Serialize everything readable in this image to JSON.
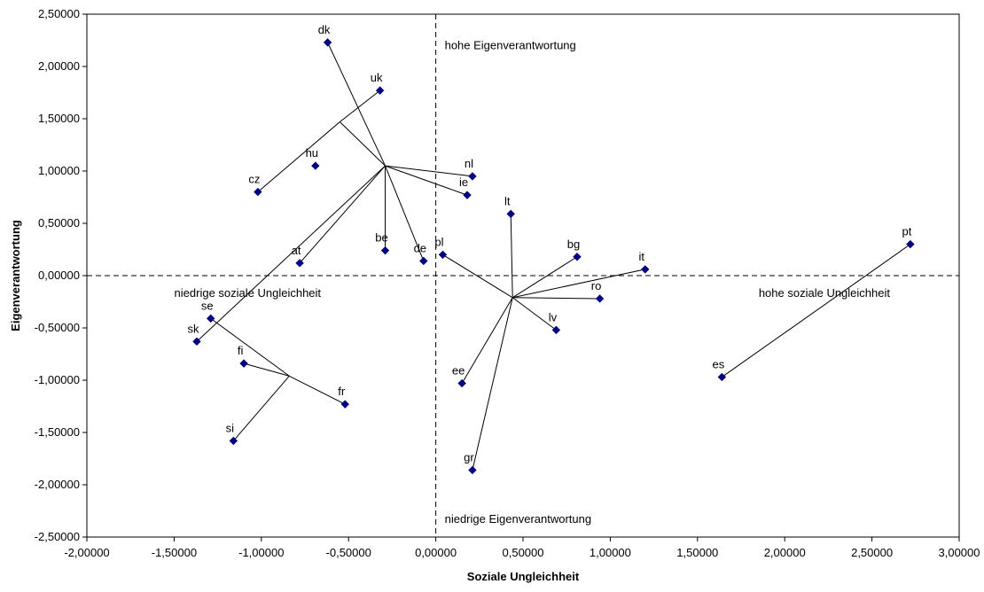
{
  "chart_data": {
    "type": "scatter",
    "xlabel": "Soziale Ungleichheit",
    "ylabel": "Eigenverantwortung",
    "xlim": [
      -2.0,
      3.0
    ],
    "ylim": [
      -2.5,
      2.5
    ],
    "x_ticks": [
      "-2,00000",
      "-1,50000",
      "-1,00000",
      "-0,50000",
      "0,00000",
      "0,50000",
      "1,00000",
      "1,50000",
      "2,00000",
      "2,50000",
      "3,00000"
    ],
    "y_ticks": [
      "2,50000",
      "2,00000",
      "1,50000",
      "1,00000",
      "0,50000",
      "0,00000",
      "-0,50000",
      "-1,00000",
      "-1,50000",
      "-2,00000",
      "-2,50000"
    ],
    "grid": false,
    "marker_color": "#000080",
    "points": [
      {
        "label": "dk",
        "x": -0.62,
        "y": 2.23
      },
      {
        "label": "uk",
        "x": -0.32,
        "y": 1.77
      },
      {
        "label": "hu",
        "x": -0.69,
        "y": 1.05
      },
      {
        "label": "cz",
        "x": -1.02,
        "y": 0.8
      },
      {
        "label": "nl",
        "x": 0.21,
        "y": 0.95
      },
      {
        "label": "ie",
        "x": 0.18,
        "y": 0.77
      },
      {
        "label": "lt",
        "x": 0.43,
        "y": 0.59
      },
      {
        "label": "be",
        "x": -0.29,
        "y": 0.24
      },
      {
        "label": "at",
        "x": -0.78,
        "y": 0.12
      },
      {
        "label": "de",
        "x": -0.07,
        "y": 0.14
      },
      {
        "label": "pl",
        "x": 0.04,
        "y": 0.2
      },
      {
        "label": "bg",
        "x": 0.81,
        "y": 0.18
      },
      {
        "label": "it",
        "x": 1.2,
        "y": 0.06
      },
      {
        "label": "pt",
        "x": 2.72,
        "y": 0.3
      },
      {
        "label": "ro",
        "x": 0.94,
        "y": -0.22
      },
      {
        "label": "lv",
        "x": 0.69,
        "y": -0.52
      },
      {
        "label": "se",
        "x": -1.29,
        "y": -0.41
      },
      {
        "label": "sk",
        "x": -1.37,
        "y": -0.63
      },
      {
        "label": "fi",
        "x": -1.1,
        "y": -0.84
      },
      {
        "label": "fr",
        "x": -0.52,
        "y": -1.23
      },
      {
        "label": "si",
        "x": -1.16,
        "y": -1.58
      },
      {
        "label": "ee",
        "x": 0.15,
        "y": -1.03
      },
      {
        "label": "gr",
        "x": 0.21,
        "y": -1.86
      },
      {
        "label": "es",
        "x": 1.64,
        "y": -0.97
      }
    ],
    "centers": [
      {
        "x": -0.29,
        "y": 1.05
      },
      {
        "x": 0.44,
        "y": -0.21
      },
      {
        "x": -0.84,
        "y": -0.96
      }
    ],
    "segments": [
      [
        {
          "x": -0.29,
          "y": 1.05
        },
        {
          "x": -0.55,
          "y": 1.47
        }
      ],
      [
        {
          "x": -0.55,
          "y": 1.47
        },
        {
          "x": -0.32,
          "y": 1.77
        }
      ],
      [
        {
          "x": -0.55,
          "y": 1.47
        },
        {
          "x": -1.02,
          "y": 0.8
        }
      ],
      [
        {
          "x": -0.29,
          "y": 1.05
        },
        {
          "x": -0.62,
          "y": 2.23
        }
      ],
      [
        {
          "x": -0.29,
          "y": 1.05
        },
        {
          "x": 0.21,
          "y": 0.95
        }
      ],
      [
        {
          "x": -0.29,
          "y": 1.05
        },
        {
          "x": 0.18,
          "y": 0.77
        }
      ],
      [
        {
          "x": -0.29,
          "y": 1.05
        },
        {
          "x": -0.29,
          "y": 0.24
        }
      ],
      [
        {
          "x": -0.29,
          "y": 1.05
        },
        {
          "x": -0.07,
          "y": 0.14
        }
      ],
      [
        {
          "x": -0.29,
          "y": 1.05
        },
        {
          "x": -0.78,
          "y": 0.12
        }
      ],
      [
        {
          "x": -0.29,
          "y": 1.05
        },
        {
          "x": -1.37,
          "y": -0.63
        }
      ],
      [
        {
          "x": -0.84,
          "y": -0.96
        },
        {
          "x": -1.29,
          "y": -0.41
        }
      ],
      [
        {
          "x": -0.84,
          "y": -0.96
        },
        {
          "x": -1.1,
          "y": -0.84
        }
      ],
      [
        {
          "x": -0.84,
          "y": -0.96
        },
        {
          "x": -0.52,
          "y": -1.23
        }
      ],
      [
        {
          "x": -0.84,
          "y": -0.96
        },
        {
          "x": -1.16,
          "y": -1.58
        }
      ],
      [
        {
          "x": 0.44,
          "y": -0.21
        },
        {
          "x": 0.43,
          "y": 0.59
        }
      ],
      [
        {
          "x": 0.44,
          "y": -0.21
        },
        {
          "x": 0.04,
          "y": 0.2
        }
      ],
      [
        {
          "x": 0.44,
          "y": -0.21
        },
        {
          "x": 0.81,
          "y": 0.18
        }
      ],
      [
        {
          "x": 0.44,
          "y": -0.21
        },
        {
          "x": 1.2,
          "y": 0.06
        }
      ],
      [
        {
          "x": 0.44,
          "y": -0.21
        },
        {
          "x": 0.94,
          "y": -0.22
        }
      ],
      [
        {
          "x": 0.44,
          "y": -0.21
        },
        {
          "x": 0.69,
          "y": -0.52
        }
      ],
      [
        {
          "x": 0.44,
          "y": -0.21
        },
        {
          "x": 0.15,
          "y": -1.03
        }
      ],
      [
        {
          "x": 0.44,
          "y": -0.21
        },
        {
          "x": 0.21,
          "y": -1.86
        }
      ],
      [
        {
          "x": 1.64,
          "y": -0.97
        },
        {
          "x": 2.72,
          "y": 0.3
        }
      ]
    ],
    "annotations": [
      {
        "text": "hohe Eigenverantwortung",
        "x": 0.0,
        "y": 2.2
      },
      {
        "text": "niedrige soziale Ungleichheit",
        "x": -1.55,
        "y": -0.17
      },
      {
        "text": "hohe soziale Ungleichheit",
        "x": 1.8,
        "y": -0.17
      },
      {
        "text": "niedrige Eigenverantwortung",
        "x": 0.0,
        "y": -2.33
      }
    ]
  }
}
